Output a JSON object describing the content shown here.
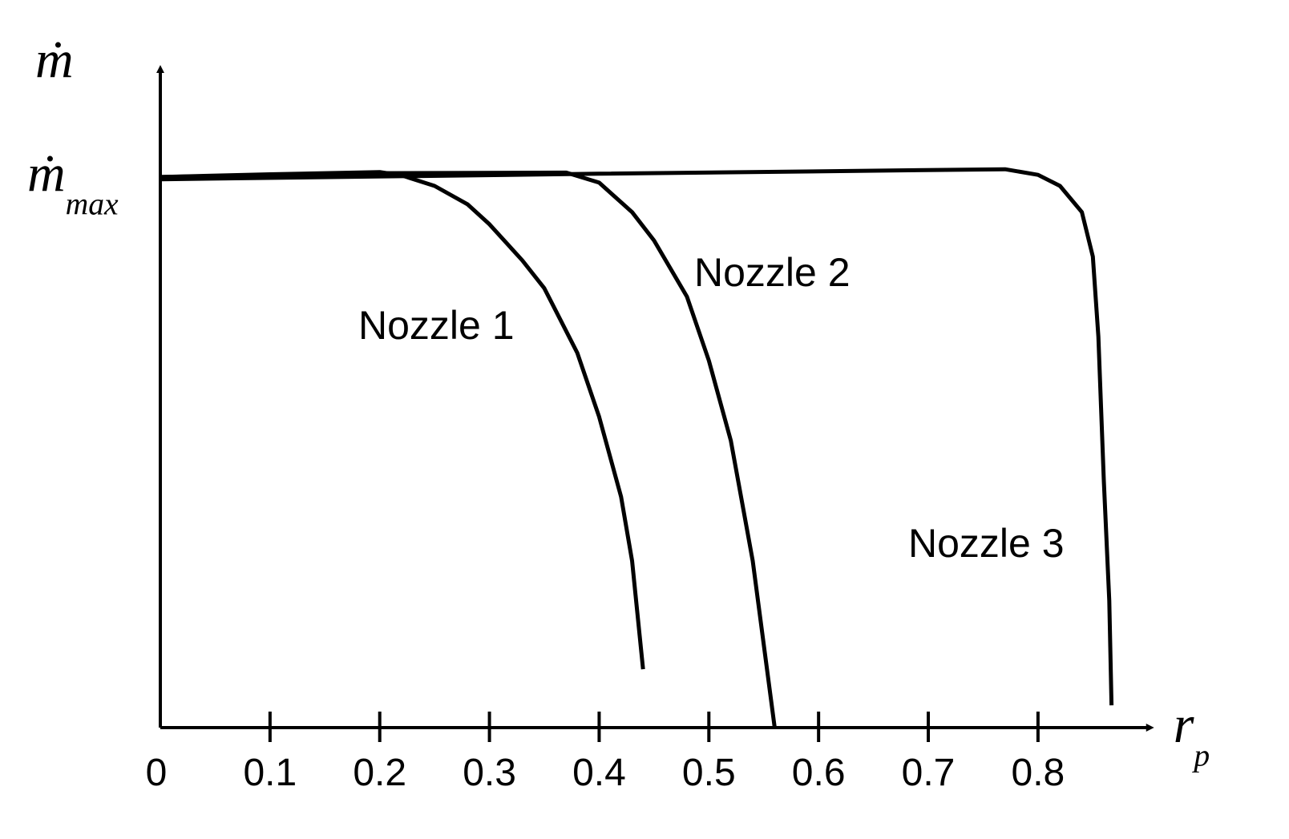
{
  "chart_data": {
    "type": "line",
    "x_label": "rp",
    "y_label": "ṁ",
    "xlim": [
      0,
      0.9
    ],
    "ylim": [
      0,
      1.18
    ],
    "xticks": [
      0,
      0.1,
      0.2,
      0.3,
      0.4,
      0.5,
      0.6,
      0.7,
      0.8
    ],
    "yticks": [
      {
        "value": 1,
        "label": "ṁmax"
      }
    ],
    "series": [
      {
        "name": "Nozzle 1",
        "color": "#000000",
        "x": [
          0,
          0.1,
          0.2,
          0.22,
          0.25,
          0.28,
          0.3,
          0.33,
          0.35,
          0.38,
          0.4,
          0.42,
          0.43,
          0.44
        ],
        "values": [
          0.99,
          0.995,
          0.999,
          0.993,
          0.974,
          0.941,
          0.905,
          0.84,
          0.79,
          0.674,
          0.559,
          0.415,
          0.3,
          0.105
        ]
      },
      {
        "name": "Nozzle 2",
        "color": "#000000",
        "x": [
          0,
          0.2,
          0.37,
          0.4,
          0.43,
          0.45,
          0.48,
          0.5,
          0.52,
          0.54,
          0.56
        ],
        "values": [
          0.99,
          0.997,
          0.998,
          0.98,
          0.927,
          0.876,
          0.775,
          0.66,
          0.516,
          0.3,
          0
        ]
      },
      {
        "name": "Nozzle 3",
        "color": "#000000",
        "x": [
          0,
          0.4,
          0.77,
          0.8,
          0.82,
          0.84,
          0.85,
          0.855,
          0.86,
          0.865,
          0.867
        ],
        "values": [
          0.986,
          0.996,
          1.004,
          0.994,
          0.974,
          0.927,
          0.847,
          0.703,
          0.444,
          0.228,
          0.04
        ]
      }
    ]
  }
}
